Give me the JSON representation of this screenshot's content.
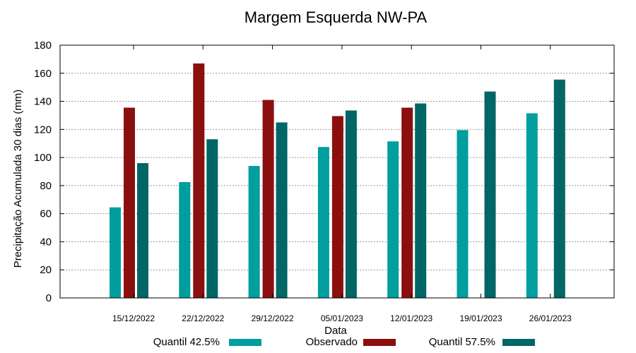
{
  "chart_data": {
    "type": "bar",
    "title": "Margem Esquerda NW-PA",
    "xlabel": "Data",
    "ylabel": "Precipitação Acumulada 30 dias (mm)",
    "ylim": [
      0,
      180
    ],
    "yticks": [
      0,
      20,
      40,
      60,
      80,
      100,
      120,
      140,
      160,
      180
    ],
    "grid": true,
    "legend_position": "bottom",
    "categories": [
      "15/12/2022",
      "22/12/2022",
      "29/12/2022",
      "05/01/2023",
      "12/01/2023",
      "19/01/2023",
      "26/01/2023"
    ],
    "series": [
      {
        "name": "Quantil 42.5%",
        "color": "#009e9e",
        "values": [
          64.5,
          82.5,
          94,
          107.5,
          111.5,
          119.5,
          131.5
        ]
      },
      {
        "name": "Observado",
        "color": "#8b0f0f",
        "values": [
          135.5,
          167,
          141,
          129.5,
          135.5,
          null,
          null
        ]
      },
      {
        "name": "Quantil 57.5%",
        "color": "#006666",
        "values": [
          96,
          113,
          125,
          133.5,
          138.5,
          147,
          155.5
        ]
      }
    ]
  }
}
